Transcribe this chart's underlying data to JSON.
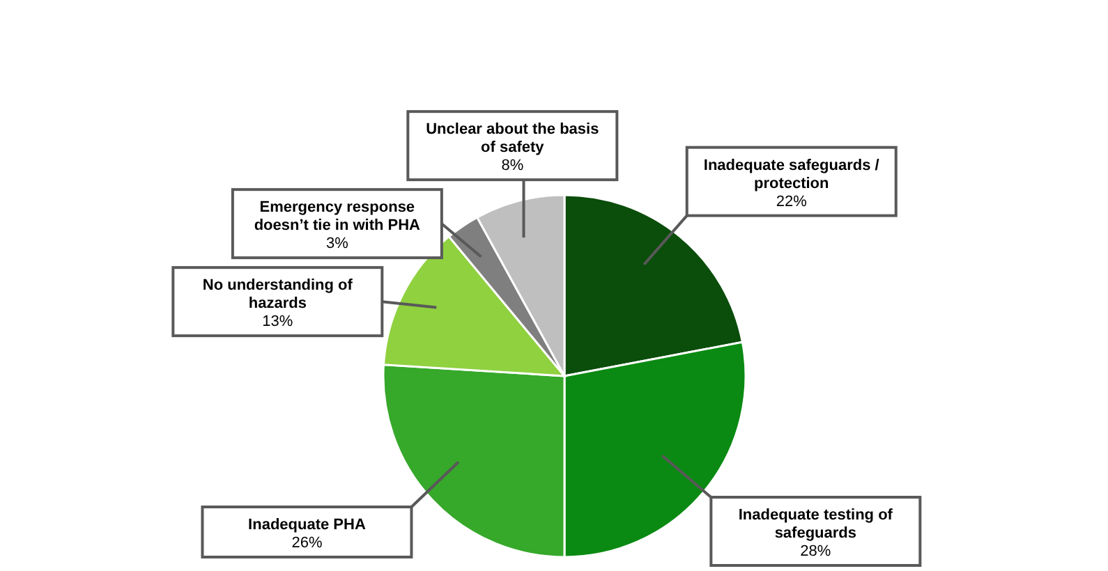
{
  "chart_data": {
    "type": "pie",
    "categories": [
      "Inadequate safeguards / protection",
      "Inadequate testing of safeguards",
      "Inadequate PHA",
      "No understanding of hazards",
      "Emergency response doesn’t tie in with PHA",
      "Unclear about the basis of safety"
    ],
    "values": [
      22,
      28,
      26,
      13,
      3,
      8
    ],
    "value_labels": [
      "22%",
      "28%",
      "26%",
      "13%",
      "3%",
      "8%"
    ],
    "colors": [
      "#0b4d0b",
      "#0a8a12",
      "#36a82a",
      "#8fd13f",
      "#7f7f7f",
      "#bfbfbf"
    ]
  }
}
